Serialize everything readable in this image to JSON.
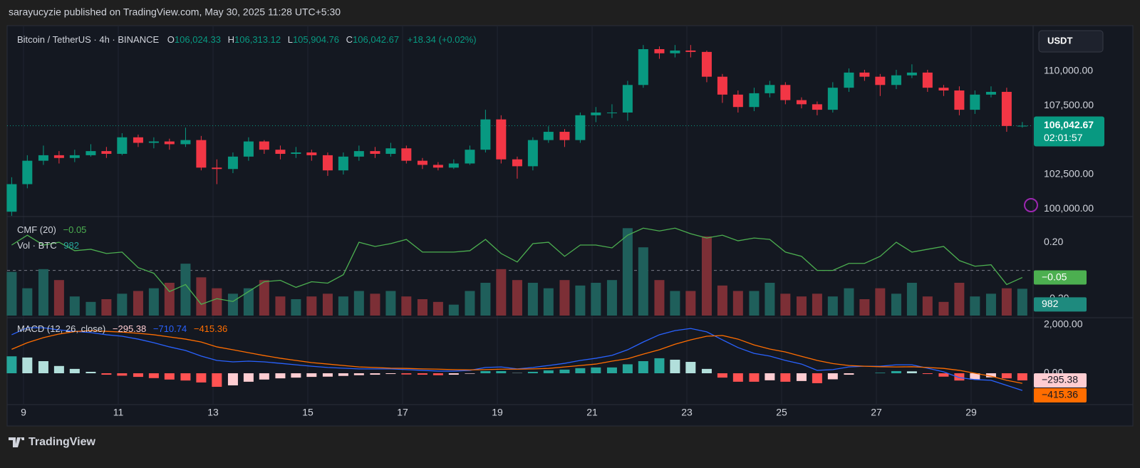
{
  "header": {
    "published": "sarayucyzie published on TradingView.com, May 30, 2025 11:28 UTC+5:30",
    "currency_button": "USDT",
    "brand": "TradingView"
  },
  "chart_data": {
    "type": "candlestick",
    "legend": {
      "symbol": "Bitcoin / TetherUS · 4h · BINANCE",
      "ohlc_letters": [
        "O",
        "H",
        "L",
        "C"
      ],
      "ohlc_values": [
        "106,024.33",
        "106,313.12",
        "105,904.76",
        "106,042.67"
      ],
      "change": "+18.34 (+0.02%)"
    },
    "last_price_label": "106,042.67",
    "countdown": "02:01:57",
    "up_color": "#089981",
    "down_color": "#f23645",
    "grid": true,
    "x": [
      8.75,
      9.08,
      9.42,
      9.75,
      10.08,
      10.42,
      10.75,
      11.08,
      11.42,
      11.75,
      12.08,
      12.42,
      12.75,
      13.08,
      13.42,
      13.75,
      14.08,
      14.42,
      14.75,
      15.08,
      15.42,
      15.75,
      16.08,
      16.42,
      16.75,
      17.08,
      17.42,
      17.75,
      18.08,
      18.42,
      18.75,
      19.08,
      19.42,
      19.75,
      20.08,
      20.42,
      20.75,
      21.08,
      21.42,
      21.75,
      22.08,
      22.42,
      22.75,
      23.08,
      23.42,
      23.75,
      24.08,
      24.42,
      24.75,
      25.08,
      25.42,
      25.75,
      26.08,
      26.42,
      26.75,
      27.08,
      27.42,
      27.75,
      28.08,
      28.42,
      28.75,
      29.08,
      29.42,
      29.75,
      30.08
    ],
    "open": [
      99800,
      101800,
      103500,
      103900,
      103700,
      103900,
      104200,
      104000,
      105200,
      104800,
      104900,
      104700,
      105000,
      103000,
      102900,
      103800,
      104900,
      104300,
      104000,
      104100,
      103900,
      102800,
      103800,
      104200,
      104000,
      104400,
      103500,
      103200,
      103000,
      103300,
      104300,
      106500,
      103600,
      103100,
      105000,
      105600,
      105000,
      106800,
      107000,
      107000,
      109000,
      111600,
      111300,
      111500,
      111400,
      109600,
      108300,
      107400,
      108400,
      109000,
      107900,
      107600,
      107200,
      108800,
      109900,
      109600,
      109000,
      109700,
      109900,
      108800,
      108600,
      107200,
      108300,
      108500,
      106024.33
    ],
    "high": [
      102300,
      103900,
      104600,
      104200,
      104300,
      104700,
      104500,
      105500,
      105400,
      105200,
      105100,
      105900,
      105300,
      103600,
      104100,
      105200,
      105000,
      104600,
      104500,
      104300,
      104100,
      104100,
      104600,
      104500,
      104800,
      104600,
      103700,
      103400,
      103600,
      104600,
      107200,
      106800,
      103800,
      105200,
      106000,
      105800,
      107000,
      107400,
      107600,
      109300,
      111900,
      111800,
      111900,
      111900,
      111500,
      109800,
      108600,
      108800,
      109300,
      109200,
      108100,
      107800,
      109200,
      110200,
      110100,
      109800,
      110100,
      110500,
      110100,
      109000,
      108900,
      108600,
      108900,
      108800,
      106313.12
    ],
    "low": [
      99500,
      101500,
      103200,
      103300,
      103400,
      103800,
      103700,
      103900,
      104500,
      104400,
      104300,
      104500,
      102800,
      101800,
      102600,
      103500,
      104000,
      103600,
      103700,
      103500,
      102400,
      102500,
      103500,
      103700,
      103800,
      103300,
      102900,
      102800,
      102900,
      103200,
      104100,
      103300,
      102200,
      102800,
      104800,
      104500,
      104800,
      106300,
      106600,
      106400,
      108800,
      110900,
      111000,
      111000,
      109200,
      107700,
      107000,
      107100,
      108100,
      107600,
      107300,
      106800,
      107000,
      108500,
      109300,
      108200,
      108700,
      109500,
      108500,
      108200,
      106800,
      106900,
      108100,
      105600,
      105904.76
    ],
    "close": [
      101800,
      103500,
      103900,
      103700,
      103900,
      104200,
      104000,
      105200,
      104800,
      104900,
      104700,
      105000,
      103000,
      102900,
      103800,
      104900,
      104300,
      104000,
      104100,
      103900,
      102800,
      103800,
      104200,
      104000,
      104400,
      103500,
      103200,
      103000,
      103300,
      104300,
      106500,
      103600,
      103100,
      105000,
      105600,
      105000,
      106800,
      107000,
      107000,
      109000,
      111600,
      111300,
      111500,
      111400,
      109600,
      108300,
      107400,
      108400,
      109000,
      107900,
      107600,
      107200,
      108800,
      109900,
      109600,
      109000,
      109700,
      109900,
      108800,
      108600,
      107200,
      108300,
      108500,
      106024.33,
      106042.67
    ],
    "xlim": [
      8.654,
      30.308
    ],
    "xticks": [
      9,
      11,
      13,
      15,
      17,
      19,
      21,
      23,
      25,
      27,
      29
    ],
    "ylim": [
      99500,
      113100
    ],
    "yticks": [
      {
        "value": 100000,
        "label": "100,000.00"
      },
      {
        "value": 102500,
        "label": "102,500.00"
      },
      {
        "value": 107500,
        "label": "107,500.00"
      },
      {
        "value": 110000,
        "label": "110,000.00"
      }
    ],
    "cmf": {
      "name": "CMF (20)",
      "value_label": "−0.05",
      "badge": "−0.05",
      "color": "#4caf50",
      "values": [
        0.18,
        0.25,
        0.18,
        0.2,
        0.14,
        0.15,
        0.12,
        0.13,
        0.02,
        -0.02,
        -0.15,
        -0.1,
        -0.24,
        -0.2,
        -0.22,
        -0.15,
        -0.08,
        -0.07,
        -0.12,
        -0.08,
        -0.09,
        -0.03,
        0.2,
        0.17,
        0.19,
        0.22,
        0.13,
        0.13,
        0.13,
        0.14,
        0.22,
        0.12,
        0.06,
        0.19,
        0.2,
        0.1,
        0.18,
        0.18,
        0.16,
        0.25,
        0.3,
        0.28,
        0.3,
        0.26,
        0.23,
        0.25,
        0.21,
        0.23,
        0.22,
        0.13,
        0.1,
        0,
        0,
        0.05,
        0.05,
        0.1,
        0.2,
        0.13,
        0.15,
        0.17,
        0.07,
        0.03,
        0.04,
        -0.1,
        -0.05
      ],
      "ylim": [
        -0.33,
        0.377
      ],
      "yticks": [
        {
          "value": 0.2,
          "label": "0.20"
        },
        {
          "value": -0.2,
          "label": "−0.20"
        }
      ],
      "zero_line": 0
    },
    "volume": {
      "name": "Vol · BTC",
      "value_label": "982",
      "badge": "982",
      "up_color": "#1f5f5b",
      "down_color": "#7c2f36",
      "values": [
        1600,
        1000,
        1700,
        1300,
        700,
        500,
        600,
        800,
        900,
        1000,
        1200,
        1900,
        1400,
        1000,
        800,
        1000,
        1300,
        700,
        600,
        700,
        800,
        700,
        900,
        800,
        900,
        700,
        600,
        500,
        400,
        900,
        1200,
        1700,
        1300,
        1200,
        1000,
        1300,
        1100,
        1200,
        1300,
        3200,
        2500,
        1300,
        900,
        900,
        2900,
        1100,
        900,
        900,
        1200,
        800,
        700,
        800,
        700,
        1000,
        600,
        1000,
        800,
        1200,
        700,
        500,
        1200,
        700,
        800,
        1000,
        982
      ],
      "ylim": [
        0,
        3600
      ]
    },
    "macd": {
      "name": "MACD (12, 26, close)",
      "value_labels": [
        "−295.38",
        "−710.74",
        "−415.36"
      ],
      "badges": [
        "−295.38",
        "−415.36"
      ],
      "macd_color": "#2962ff",
      "signal_color": "#ff6d00",
      "hist_colors": [
        "#26a69a",
        "#b2dfdb",
        "#ff5252",
        "#ffcdd2"
      ],
      "macd": [
        1590,
        1880,
        1880,
        1790,
        1730,
        1680,
        1590,
        1530,
        1410,
        1260,
        1090,
        940,
        710,
        530,
        470,
        500,
        470,
        410,
        350,
        290,
        240,
        210,
        180,
        180,
        180,
        150,
        120,
        90,
        90,
        120,
        240,
        260,
        180,
        240,
        320,
        410,
        530,
        620,
        740,
        970,
        1290,
        1590,
        1760,
        1850,
        1710,
        1380,
        1060,
        820,
        710,
        530,
        380,
        120,
        150,
        260,
        290,
        290,
        350,
        350,
        210,
        60,
        -180,
        -260,
        -290,
        -500,
        -710.74
      ],
      "signal": [
        990,
        1260,
        1470,
        1620,
        1720,
        1760,
        1730,
        1700,
        1650,
        1590,
        1500,
        1410,
        1290,
        1090,
        970,
        850,
        730,
        620,
        530,
        440,
        380,
        320,
        260,
        240,
        210,
        200,
        180,
        170,
        150,
        140,
        150,
        170,
        170,
        180,
        200,
        260,
        320,
        380,
        500,
        600,
        790,
        970,
        1200,
        1380,
        1530,
        1560,
        1410,
        1170,
        1000,
        880,
        700,
        530,
        400,
        320,
        290,
        270,
        260,
        270,
        240,
        200,
        120,
        0,
        -120,
        -290,
        -415.36
      ],
      "histogram": [
        700,
        650,
        500,
        300,
        180,
        60,
        -60,
        -100,
        -150,
        -200,
        -260,
        -300,
        -380,
        -560,
        -500,
        -350,
        -260,
        -210,
        -180,
        -150,
        -140,
        -110,
        -80,
        -60,
        -30,
        -50,
        -60,
        -80,
        -60,
        -20,
        90,
        90,
        10,
        60,
        120,
        150,
        210,
        240,
        240,
        370,
        500,
        620,
        560,
        470,
        180,
        -180,
        -350,
        -350,
        -290,
        -350,
        -320,
        -410,
        -250,
        -60,
        0,
        20,
        90,
        80,
        -30,
        -140,
        -300,
        -260,
        -170,
        -210,
        -295.38
      ],
      "ylim": [
        -1265,
        2265
      ],
      "yticks": [
        {
          "value": 2000,
          "label": "2,000.00"
        },
        {
          "value": 0,
          "label": "0.00"
        }
      ]
    }
  }
}
